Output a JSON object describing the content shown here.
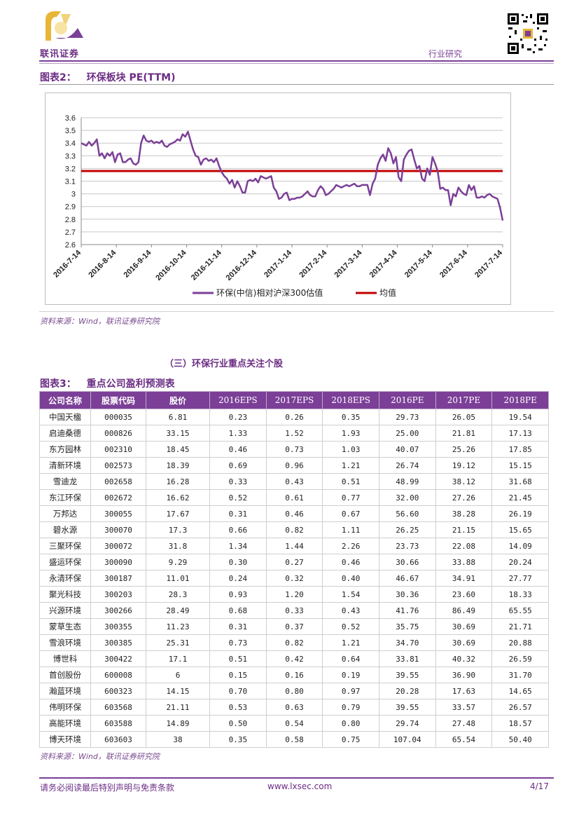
{
  "header": {
    "logo_text": "联讯证券",
    "section": "行业研究"
  },
  "figure2": {
    "label": "图表2：",
    "title": "环保板块 PE(TTM)",
    "source": "资料来源：Wind，联讯证券研究院"
  },
  "chart_data": {
    "type": "line",
    "title": "环保板块 PE(TTM)",
    "x_labels": [
      "2016-7-14",
      "2016-8-14",
      "2016-9-14",
      "2016-10-14",
      "2016-11-14",
      "2016-12-14",
      "2017-1-14",
      "2017-2-14",
      "2017-3-14",
      "2017-4-14",
      "2017-5-14",
      "2017-6-14",
      "2017-7-14"
    ],
    "y_ticks": [
      "2.6",
      "2.7",
      "2.8",
      "2.9",
      "3",
      "3.1",
      "3.2",
      "3.3",
      "3.4",
      "3.5",
      "3.6"
    ],
    "ylim": [
      2.6,
      3.6
    ],
    "series": [
      {
        "name": "环保(中信)相对沪深300估值",
        "color": "#7b3f97",
        "values": [
          3.4,
          3.39,
          3.38,
          3.41,
          3.38,
          3.4,
          3.43,
          3.3,
          3.32,
          3.28,
          3.32,
          3.3,
          3.33,
          3.25,
          3.31,
          3.32,
          3.25,
          3.25,
          3.27,
          3.28,
          3.24,
          3.23,
          3.25,
          3.4,
          3.46,
          3.42,
          3.41,
          3.42,
          3.4,
          3.41,
          3.4,
          3.42,
          3.38,
          3.37,
          3.39,
          3.4,
          3.41,
          3.43,
          3.42,
          3.47,
          3.45,
          3.49,
          3.42,
          3.35,
          3.3,
          3.29,
          3.23,
          3.27,
          3.28,
          3.26,
          3.27,
          3.25,
          3.28,
          3.22,
          3.17,
          3.14,
          3.12,
          3.08,
          3.11,
          3.05,
          3.1,
          3.06,
          3.01,
          3.01,
          3.1,
          3.11,
          3.1,
          3.12,
          3.09,
          3.14,
          3.13,
          3.12,
          3.13,
          3.14,
          3.05,
          3.02,
          2.96,
          2.97,
          3.0,
          3.01,
          2.95,
          2.96,
          2.96,
          2.97,
          2.97,
          2.98,
          3.0,
          3.02,
          2.99,
          2.98,
          2.98,
          3.03,
          3.06,
          3.04,
          2.99,
          3.0,
          3.02,
          3.04,
          3.07,
          3.06,
          3.05,
          3.06,
          3.07,
          3.06,
          3.07,
          3.08,
          3.06,
          3.06,
          3.07,
          3.07,
          3.07,
          2.99,
          3.08,
          3.12,
          3.23,
          3.28,
          3.31,
          3.26,
          3.36,
          3.32,
          3.24,
          3.29,
          3.13,
          3.1,
          3.27,
          3.31,
          3.34,
          3.35,
          3.27,
          3.2,
          3.22,
          3.12,
          3.1,
          3.2,
          3.15,
          3.29,
          3.24,
          3.18,
          3.04,
          3.05,
          3.03,
          3.03,
          2.91,
          3.0,
          2.98,
          3.05,
          3.02,
          3.0,
          2.99,
          3.07,
          3.03,
          3.06,
          2.97,
          2.97,
          2.98,
          2.97,
          2.99,
          3.0,
          2.98,
          2.97,
          2.96,
          2.89,
          2.79
        ]
      },
      {
        "name": "均值",
        "color": "#c00000",
        "values": [
          3.18
        ]
      }
    ]
  },
  "section3_title": "（三）环保行业重点关注个股",
  "figure3": {
    "label": "图表3：",
    "title": "重点公司盈利预测表",
    "source": "资料来源：Wind，联讯证券研究院"
  },
  "table": {
    "headers": [
      "公司名称",
      "股票代码",
      "股价",
      "2016EPS",
      "2017EPS",
      "2018EPS",
      "2016PE",
      "2017PE",
      "2018PE"
    ],
    "rows": [
      [
        "中国天楹",
        "000035",
        "6.81",
        "0.23",
        "0.26",
        "0.35",
        "29.73",
        "26.05",
        "19.54"
      ],
      [
        "启迪桑德",
        "000826",
        "33.15",
        "1.33",
        "1.52",
        "1.93",
        "25.00",
        "21.81",
        "17.13"
      ],
      [
        "东方园林",
        "002310",
        "18.45",
        "0.46",
        "0.73",
        "1.03",
        "40.07",
        "25.26",
        "17.85"
      ],
      [
        "清新环境",
        "002573",
        "18.39",
        "0.69",
        "0.96",
        "1.21",
        "26.74",
        "19.12",
        "15.15"
      ],
      [
        "雪迪龙",
        "002658",
        "16.28",
        "0.33",
        "0.43",
        "0.51",
        "48.99",
        "38.12",
        "31.68"
      ],
      [
        "东江环保",
        "002672",
        "16.62",
        "0.52",
        "0.61",
        "0.77",
        "32.00",
        "27.26",
        "21.45"
      ],
      [
        "万邦达",
        "300055",
        "17.67",
        "0.31",
        "0.46",
        "0.67",
        "56.60",
        "38.28",
        "26.19"
      ],
      [
        "碧水源",
        "300070",
        "17.3",
        "0.66",
        "0.82",
        "1.11",
        "26.25",
        "21.15",
        "15.65"
      ],
      [
        "三聚环保",
        "300072",
        "31.8",
        "1.34",
        "1.44",
        "2.26",
        "23.73",
        "22.08",
        "14.09"
      ],
      [
        "盛运环保",
        "300090",
        "9.29",
        "0.30",
        "0.27",
        "0.46",
        "30.66",
        "33.88",
        "20.24"
      ],
      [
        "永清环保",
        "300187",
        "11.01",
        "0.24",
        "0.32",
        "0.40",
        "46.67",
        "34.91",
        "27.77"
      ],
      [
        "聚光科技",
        "300203",
        "28.3",
        "0.93",
        "1.20",
        "1.54",
        "30.36",
        "23.60",
        "18.33"
      ],
      [
        "兴源环境",
        "300266",
        "28.49",
        "0.68",
        "0.33",
        "0.43",
        "41.76",
        "86.49",
        "65.55"
      ],
      [
        "蒙草生态",
        "300355",
        "11.23",
        "0.31",
        "0.37",
        "0.52",
        "35.75",
        "30.69",
        "21.71"
      ],
      [
        "雪浪环境",
        "300385",
        "25.31",
        "0.73",
        "0.82",
        "1.21",
        "34.70",
        "30.69",
        "20.88"
      ],
      [
        "博世科",
        "300422",
        "17.1",
        "0.51",
        "0.42",
        "0.64",
        "33.81",
        "40.32",
        "26.59"
      ],
      [
        "首创股份",
        "600008",
        "6",
        "0.15",
        "0.16",
        "0.19",
        "39.55",
        "36.90",
        "31.70"
      ],
      [
        "瀚蓝环境",
        "600323",
        "14.15",
        "0.70",
        "0.80",
        "0.97",
        "20.28",
        "17.63",
        "14.65"
      ],
      [
        "伟明环保",
        "603568",
        "21.11",
        "0.53",
        "0.63",
        "0.79",
        "39.55",
        "33.57",
        "26.57"
      ],
      [
        "高能环境",
        "603588",
        "14.89",
        "0.50",
        "0.54",
        "0.80",
        "29.74",
        "27.48",
        "18.57"
      ],
      [
        "博天环境",
        "603603",
        "38",
        "0.35",
        "0.58",
        "0.75",
        "107.04",
        "65.54",
        "50.40"
      ]
    ]
  },
  "footer": {
    "disclaimer": "请务必阅读最后特别声明与免责条款",
    "website": "www.lxsec.com",
    "page": "4/17"
  },
  "colors": {
    "brand": "#6b2d84",
    "header_fill": "#7b3f97",
    "mean_line": "#c00000",
    "logo_gold": "#e8b637"
  }
}
